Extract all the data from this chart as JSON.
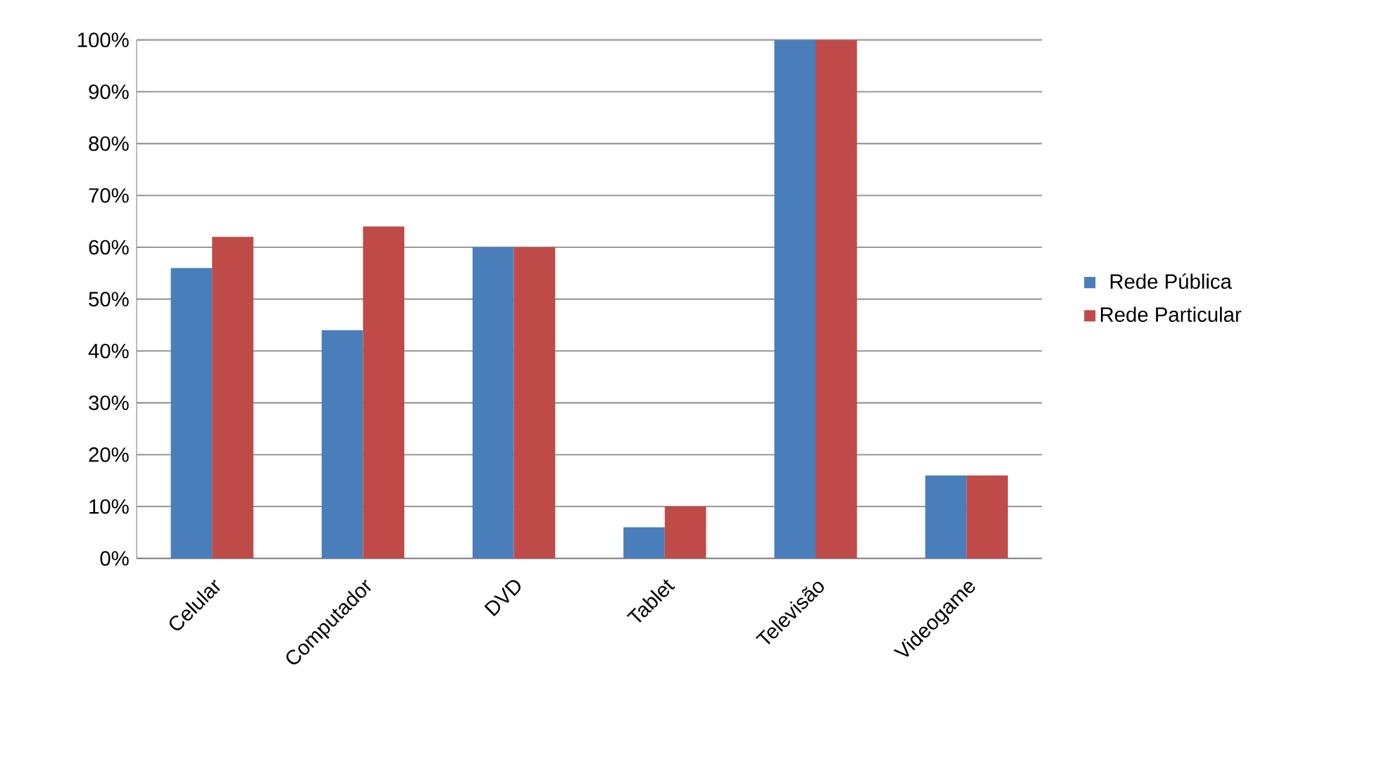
{
  "chart_data": {
    "type": "bar",
    "categories": [
      "Celular",
      "Computador",
      "DVD",
      "Tablet",
      "Televisão",
      "Videogame"
    ],
    "series": [
      {
        "name": "Rede Pública",
        "color": "#4a7ebb",
        "values": [
          56,
          44,
          60,
          6,
          100,
          16
        ]
      },
      {
        "name": "Rede Particular",
        "color": "#be4b48",
        "values": [
          62,
          64,
          60,
          10,
          100,
          16
        ]
      }
    ],
    "ylim": [
      0,
      100
    ],
    "yticks": [
      {
        "value": 0,
        "label": "0%"
      },
      {
        "value": 10,
        "label": "10%"
      },
      {
        "value": 20,
        "label": "20%"
      },
      {
        "value": 30,
        "label": "30%"
      },
      {
        "value": 40,
        "label": "40%"
      },
      {
        "value": 50,
        "label": "50%"
      },
      {
        "value": 60,
        "label": "60%"
      },
      {
        "value": 70,
        "label": "70%"
      },
      {
        "value": 80,
        "label": "80%"
      },
      {
        "value": 90,
        "label": "90%"
      },
      {
        "value": 100,
        "label": "100%"
      }
    ],
    "grid": "y",
    "legend": "right"
  }
}
